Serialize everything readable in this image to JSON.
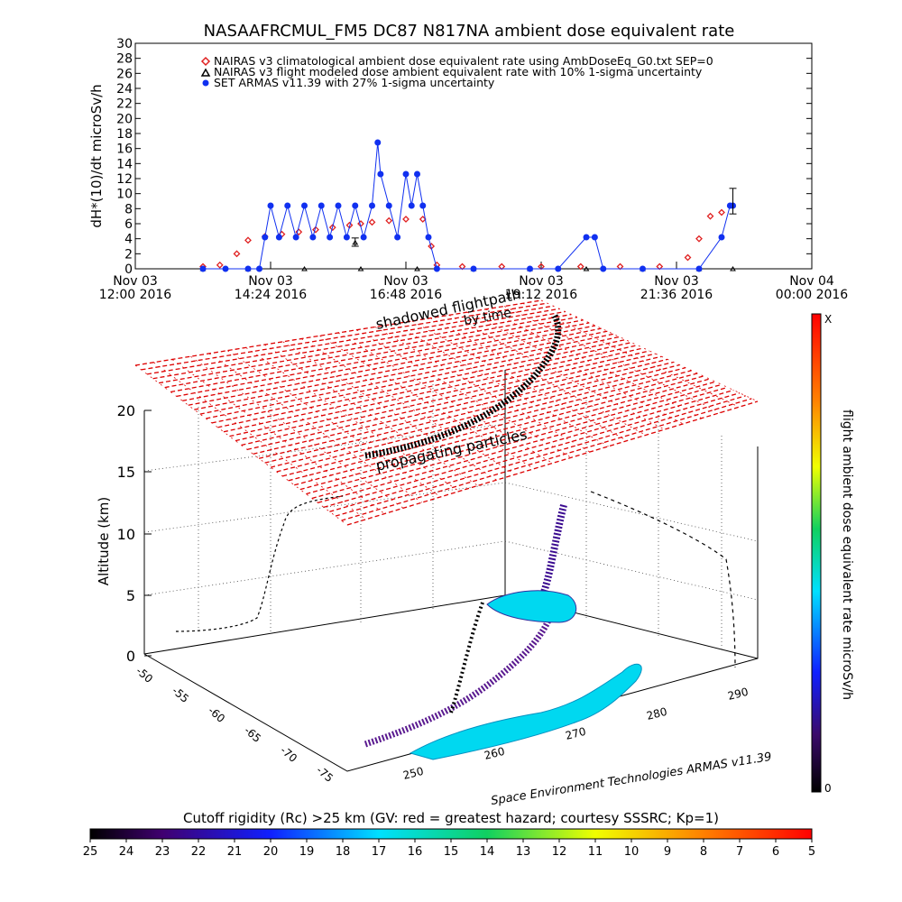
{
  "colors": {
    "climatological": "#e02020",
    "flight_modeled": "#000000",
    "armas": "#1030f0",
    "grid_plane": "#dd0000"
  },
  "chart_data": [
    {
      "type": "scatter",
      "title": "NASAAFRCMUL_FM5 DC87 N817NA ambient dose equivalent rate",
      "ylabel": "dH*(10)/dt microSv/h",
      "ylim": [
        0,
        30
      ],
      "yticks": [
        "0",
        "2",
        "4",
        "6",
        "8",
        "10",
        "12",
        "14",
        "16",
        "18",
        "20",
        "22",
        "24",
        "26",
        "28",
        "30"
      ],
      "xlim": [
        12.0,
        24.0
      ],
      "xticks": [
        {
          "x": 12.0,
          "line1": "Nov 03",
          "line2": "12:00 2016"
        },
        {
          "x": 14.4,
          "line1": "Nov 03",
          "line2": "14:24 2016"
        },
        {
          "x": 16.8,
          "line1": "Nov 03",
          "line2": "16:48 2016"
        },
        {
          "x": 19.2,
          "line1": "Nov 03",
          "line2": "19:12 2016"
        },
        {
          "x": 21.6,
          "line1": "Nov 03",
          "line2": "21:36 2016"
        },
        {
          "x": 24.0,
          "line1": "Nov 04",
          "line2": "00:00 2016"
        }
      ],
      "series": [
        {
          "name": "NAIRAS v3 climatological ambient dose equivalent rate using AmbDoseEq_G0.txt SEP=0",
          "marker": "diamond",
          "points": [
            [
              13.2,
              0.3
            ],
            [
              13.5,
              0.5
            ],
            [
              13.8,
              2.0
            ],
            [
              14.0,
              3.8
            ],
            [
              14.3,
              4.3
            ],
            [
              14.6,
              4.6
            ],
            [
              14.9,
              4.9
            ],
            [
              15.2,
              5.2
            ],
            [
              15.5,
              5.5
            ],
            [
              15.8,
              5.8
            ],
            [
              16.0,
              6.0
            ],
            [
              16.2,
              6.2
            ],
            [
              16.5,
              6.4
            ],
            [
              16.8,
              6.6
            ],
            [
              17.1,
              6.6
            ],
            [
              17.25,
              3.0
            ],
            [
              17.35,
              0.5
            ],
            [
              17.8,
              0.3
            ],
            [
              18.5,
              0.3
            ],
            [
              19.2,
              0.3
            ],
            [
              19.9,
              0.3
            ],
            [
              20.6,
              0.3
            ],
            [
              21.3,
              0.3
            ],
            [
              21.8,
              1.5
            ],
            [
              22.0,
              4.0
            ],
            [
              22.2,
              7.0
            ],
            [
              22.4,
              7.5
            ]
          ]
        },
        {
          "name": "NAIRAS v3 flight modeled dose ambient equivalent rate with 10% 1-sigma uncertainty",
          "marker": "triangle",
          "points": [
            [
              13.2,
              0.0
            ],
            [
              14.0,
              0.0
            ],
            [
              15.0,
              0.0
            ],
            [
              16.0,
              0.0
            ],
            [
              17.0,
              0.0
            ],
            [
              18.0,
              0.0
            ],
            [
              19.0,
              0.0
            ],
            [
              20.0,
              0.0
            ],
            [
              21.0,
              0.0
            ],
            [
              22.0,
              0.0
            ],
            [
              22.6,
              0.0
            ],
            [
              15.9,
              3.5
            ],
            [
              22.6,
              8.5
            ]
          ]
        },
        {
          "name": "SET ARMAS v11.39 with 27% 1-sigma uncertainty",
          "marker": "circle",
          "points": [
            [
              13.2,
              0.0
            ],
            [
              13.6,
              0.0
            ],
            [
              14.0,
              0.0
            ],
            [
              14.2,
              0.0
            ],
            [
              14.3,
              4.2
            ],
            [
              14.4,
              8.4
            ],
            [
              14.55,
              4.2
            ],
            [
              14.7,
              8.4
            ],
            [
              14.85,
              4.2
            ],
            [
              15.0,
              8.4
            ],
            [
              15.15,
              4.2
            ],
            [
              15.3,
              8.4
            ],
            [
              15.45,
              4.2
            ],
            [
              15.6,
              8.4
            ],
            [
              15.75,
              4.2
            ],
            [
              15.9,
              8.4
            ],
            [
              16.05,
              4.2
            ],
            [
              16.2,
              8.4
            ],
            [
              16.3,
              16.8
            ],
            [
              16.35,
              12.6
            ],
            [
              16.5,
              8.4
            ],
            [
              16.65,
              4.2
            ],
            [
              16.8,
              12.6
            ],
            [
              16.9,
              8.4
            ],
            [
              17.0,
              12.6
            ],
            [
              17.1,
              8.4
            ],
            [
              17.2,
              4.2
            ],
            [
              17.35,
              0.0
            ],
            [
              18.0,
              0.0
            ],
            [
              19.0,
              0.0
            ],
            [
              19.5,
              0.0
            ],
            [
              20.0,
              4.2
            ],
            [
              20.15,
              4.2
            ],
            [
              20.3,
              0.0
            ],
            [
              21.0,
              0.0
            ],
            [
              22.0,
              0.0
            ],
            [
              22.4,
              4.2
            ],
            [
              22.55,
              8.4
            ],
            [
              22.6,
              8.4
            ]
          ]
        }
      ]
    },
    {
      "type": "3d-scatter",
      "zlabel": "Altitude (km)",
      "zticks": [
        "0",
        "5",
        "10",
        "15",
        "20"
      ],
      "lat_ticks": [
        "-50",
        "-55",
        "-60",
        "-65",
        "-70",
        "-75"
      ],
      "lon_ticks": [
        "250",
        "260",
        "270",
        "280",
        "290"
      ],
      "annotations": {
        "shadowed_flightpath": "shadowed flightpath",
        "by_time": "by time",
        "propagating_particles": "propagating particles",
        "credit": "Space Environment Technologies ARMAS v11.39"
      },
      "colorbar": {
        "label": "flight ambient dose equivalent rate microSv/h",
        "top": "X",
        "bottom": "0"
      }
    },
    {
      "type": "colorbar",
      "title": "Cutoff rigidity (Rc) >25 km (GV: red = greatest hazard; courtesy SSSRC; Kp=1)",
      "labels": [
        "25",
        "24",
        "23",
        "22",
        "21",
        "20",
        "19",
        "18",
        "17",
        "16",
        "15",
        "14",
        "13",
        "12",
        "11",
        "10",
        "9",
        "8",
        "7",
        "6",
        "5"
      ]
    }
  ]
}
